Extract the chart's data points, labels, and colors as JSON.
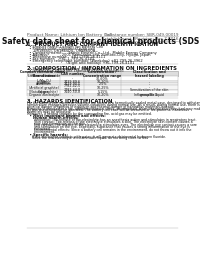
{
  "title": "Safety data sheet for chemical products (SDS)",
  "header_left": "Product Name: Lithium Ion Battery Cell",
  "header_right": "Substance number: SBR-049-00019\nEstablishment / Revision: Dec.7.2016",
  "section1_title": "1. PRODUCT AND COMPANY IDENTIFICATION",
  "section1_lines": [
    "  • Product name: Lithium Ion Battery Cell",
    "  • Product code: Cylindrical-type cell",
    "      UR18650J, UR18650JL, UR18650A",
    "  • Company name:     Sanyo Electric Co., Ltd., Mobile Energy Company",
    "  • Address:            2001 Kamunaka-cho, Sumoto-City, Hyogo, Japan",
    "  • Telephone number:   +81-(799)-26-4111",
    "  • Fax number:   +81-1-799-26-4120",
    "  • Emergency telephone number: (Weekday) +81-799-26-3962",
    "                                   (Night and holiday) +81-799-26-4101"
  ],
  "section2_title": "2. COMPOSITION / INFORMATION ON INGREDIENTS",
  "section2_intro": "  • Substance or preparation: Preparation",
  "section2_sub": "  • Information about the chemical nature of product:",
  "table_col_headers": [
    "Common chemical name /\nBrand name",
    "CAS number",
    "Concentration /\nConcentration range",
    "Classification and\nhazard labeling"
  ],
  "table_rows": [
    [
      "Lithium cobalt oxide\n(LiMn₂O₄)",
      "-",
      "30-60%",
      "-"
    ],
    [
      "Iron",
      "7439-89-6",
      "10-20%",
      "-"
    ],
    [
      "Aluminum",
      "7429-90-5",
      "2-5%",
      "-"
    ],
    [
      "Graphite\n(Artificial graphite)\n(Natural graphite)",
      "7782-42-5\n7782-44-0",
      "10-25%",
      "-"
    ],
    [
      "Copper",
      "7440-50-8",
      "5-15%",
      "Sensitization of the skin\ngroup No.2"
    ],
    [
      "Organic electrolyte",
      "-",
      "10-20%",
      "Inflammable liquid"
    ]
  ],
  "section3_title": "3. HAZARDS IDENTIFICATION",
  "section3_lines": [
    "For the battery cell, chemical materials are stored in a hermetically sealed metal case, designed to withstand",
    "temperature changes/pressure-volume-variations during normal use. As a result, during normal use, there is no",
    "physical danger of ignition or explosion and thermal-danger of hazardous materials leakage.",
    "However, if exposed to a fire, added mechanical shock, decomposed, when internal short-circuited may make use.",
    "As gas release cannot be operated. The battery cell case will be breached or fire-patterns, hazardous",
    "materials may be released.",
    "Moreover, if heated strongly by the surrounding fire, acid gas may be emitted."
  ],
  "hazard_bullet": "  • Most important hazard and effects:",
  "human_health": "    Human health effects:",
  "human_lines": [
    "      Inhalation: The release of the electrolyte has an anesthesia action and stimulates in respiratory tract.",
    "      Skin contact: The release of the electrolyte stimulates a skin. The electrolyte skin contact causes a",
    "      sore and stimulation on the skin.",
    "      Eye contact: The release of the electrolyte stimulates eyes. The electrolyte eye contact causes a sore",
    "      and stimulation on the eye. Especially, substance that causes a strong inflammation of the eye is",
    "      contained.",
    "      Environmental effects: Since a battery cell remains in the environment, do not throw out it into the",
    "      environment."
  ],
  "specific_bullet": "  • Specific hazards:",
  "specific_lines": [
    "    If the electrolyte contacts with water, it will generate detrimental hydrogen fluoride.",
    "    Since the real electrolyte is inflammable liquid, do not bring close to fire."
  ],
  "bg_color": "#ffffff",
  "text_color": "#111111",
  "line_color": "#aaaaaa",
  "table_header_bg": "#dddddd",
  "fs_header": 3.2,
  "fs_title": 5.5,
  "fs_section": 3.8,
  "fs_body": 3.0,
  "fs_small": 2.6,
  "fs_tiny": 2.3
}
